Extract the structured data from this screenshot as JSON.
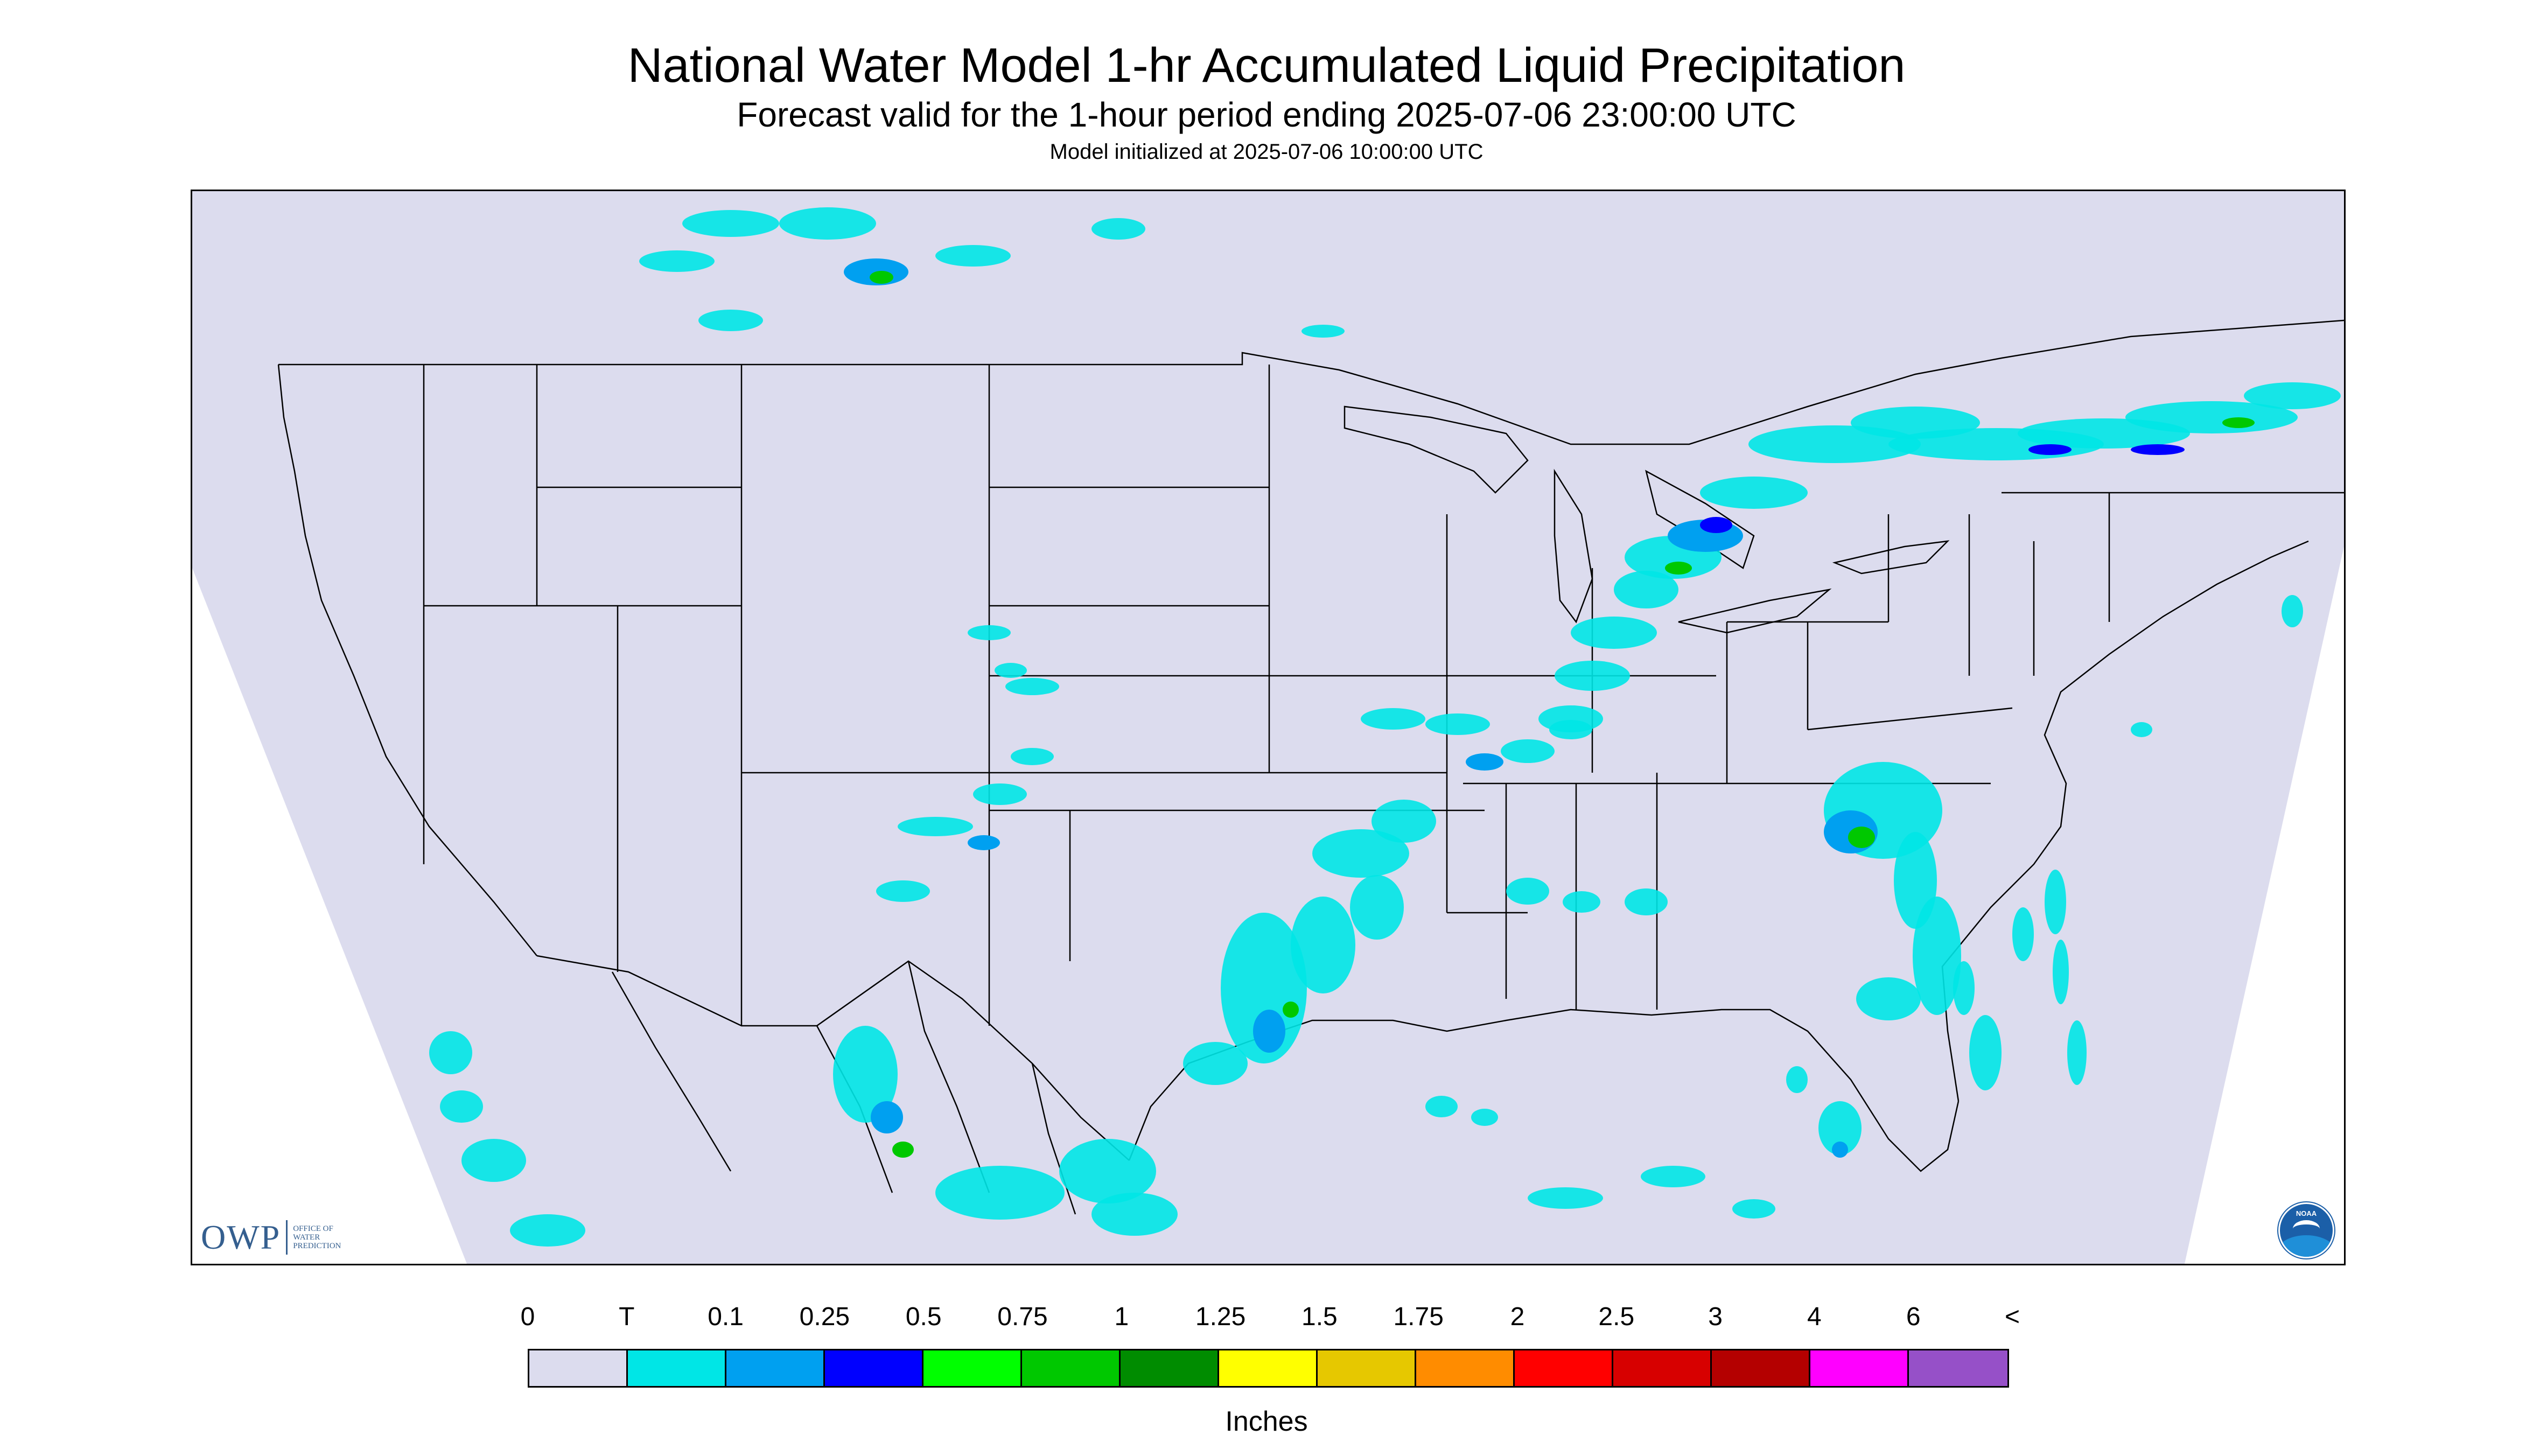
{
  "header": {
    "title": "National Water Model 1-hr Accumulated Liquid Precipitation",
    "subtitle": "Forecast valid for the 1-hour period ending 2025-07-06 23:00:00 UTC",
    "init": "Model initialized at 2025-07-06 10:00:00 UTC"
  },
  "map": {
    "region": "CONUS",
    "background_color": "#dcdcee",
    "outside_color": "#ffffff",
    "boundary_color": "#000000",
    "precip_colors": [
      "#00e6e6",
      "#00a0f0",
      "#0000ff",
      "#00c800",
      "#008c00",
      "#e6c800"
    ]
  },
  "logos": {
    "owp_mark": "OWP",
    "owp_text": "OFFICE OF\nWATER\nPREDICTION",
    "noaa_label": "NOAA"
  },
  "legend": {
    "title": "Inches",
    "labels": [
      "0",
      "T",
      "0.1",
      "0.25",
      "0.5",
      "0.75",
      "1",
      "1.25",
      "1.5",
      "1.75",
      "2",
      "2.5",
      "3",
      "4",
      "6",
      "<"
    ],
    "colors": [
      "#dcdcee",
      "#00e6e6",
      "#00a0f0",
      "#0000ff",
      "#00ff00",
      "#00c800",
      "#008c00",
      "#ffff00",
      "#e6c800",
      "#ff8c00",
      "#ff0000",
      "#d70000",
      "#b40000",
      "#ff00ff",
      "#9650c8"
    ]
  }
}
